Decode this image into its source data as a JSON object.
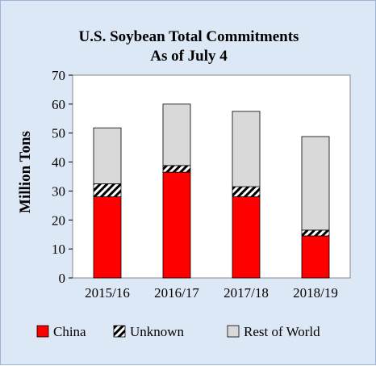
{
  "chart_data": {
    "type": "bar",
    "stacked": true,
    "title": "U.S. Soybean Total Commitments",
    "subtitle": "As of July 4",
    "xlabel": "",
    "ylabel": "Million Tons",
    "ylim": [
      0,
      70
    ],
    "yticks": [
      0,
      10,
      20,
      30,
      40,
      50,
      60,
      70
    ],
    "grid": false,
    "legend_position": "bottom",
    "categories": [
      "2015/16",
      "2016/17",
      "2017/18",
      "2018/19"
    ],
    "series": [
      {
        "name": "China",
        "values": [
          28,
          36.5,
          28,
          14.5
        ],
        "color": "#ff0000",
        "pattern": "solid"
      },
      {
        "name": "Unknown",
        "values": [
          4.5,
          2.3,
          3.5,
          2
        ],
        "color": "#000000",
        "pattern": "diagonal-hatch"
      },
      {
        "name": "Rest of World",
        "values": [
          19.3,
          21.2,
          26,
          32.3
        ],
        "color": "#d9d9d9",
        "pattern": "solid"
      }
    ]
  }
}
